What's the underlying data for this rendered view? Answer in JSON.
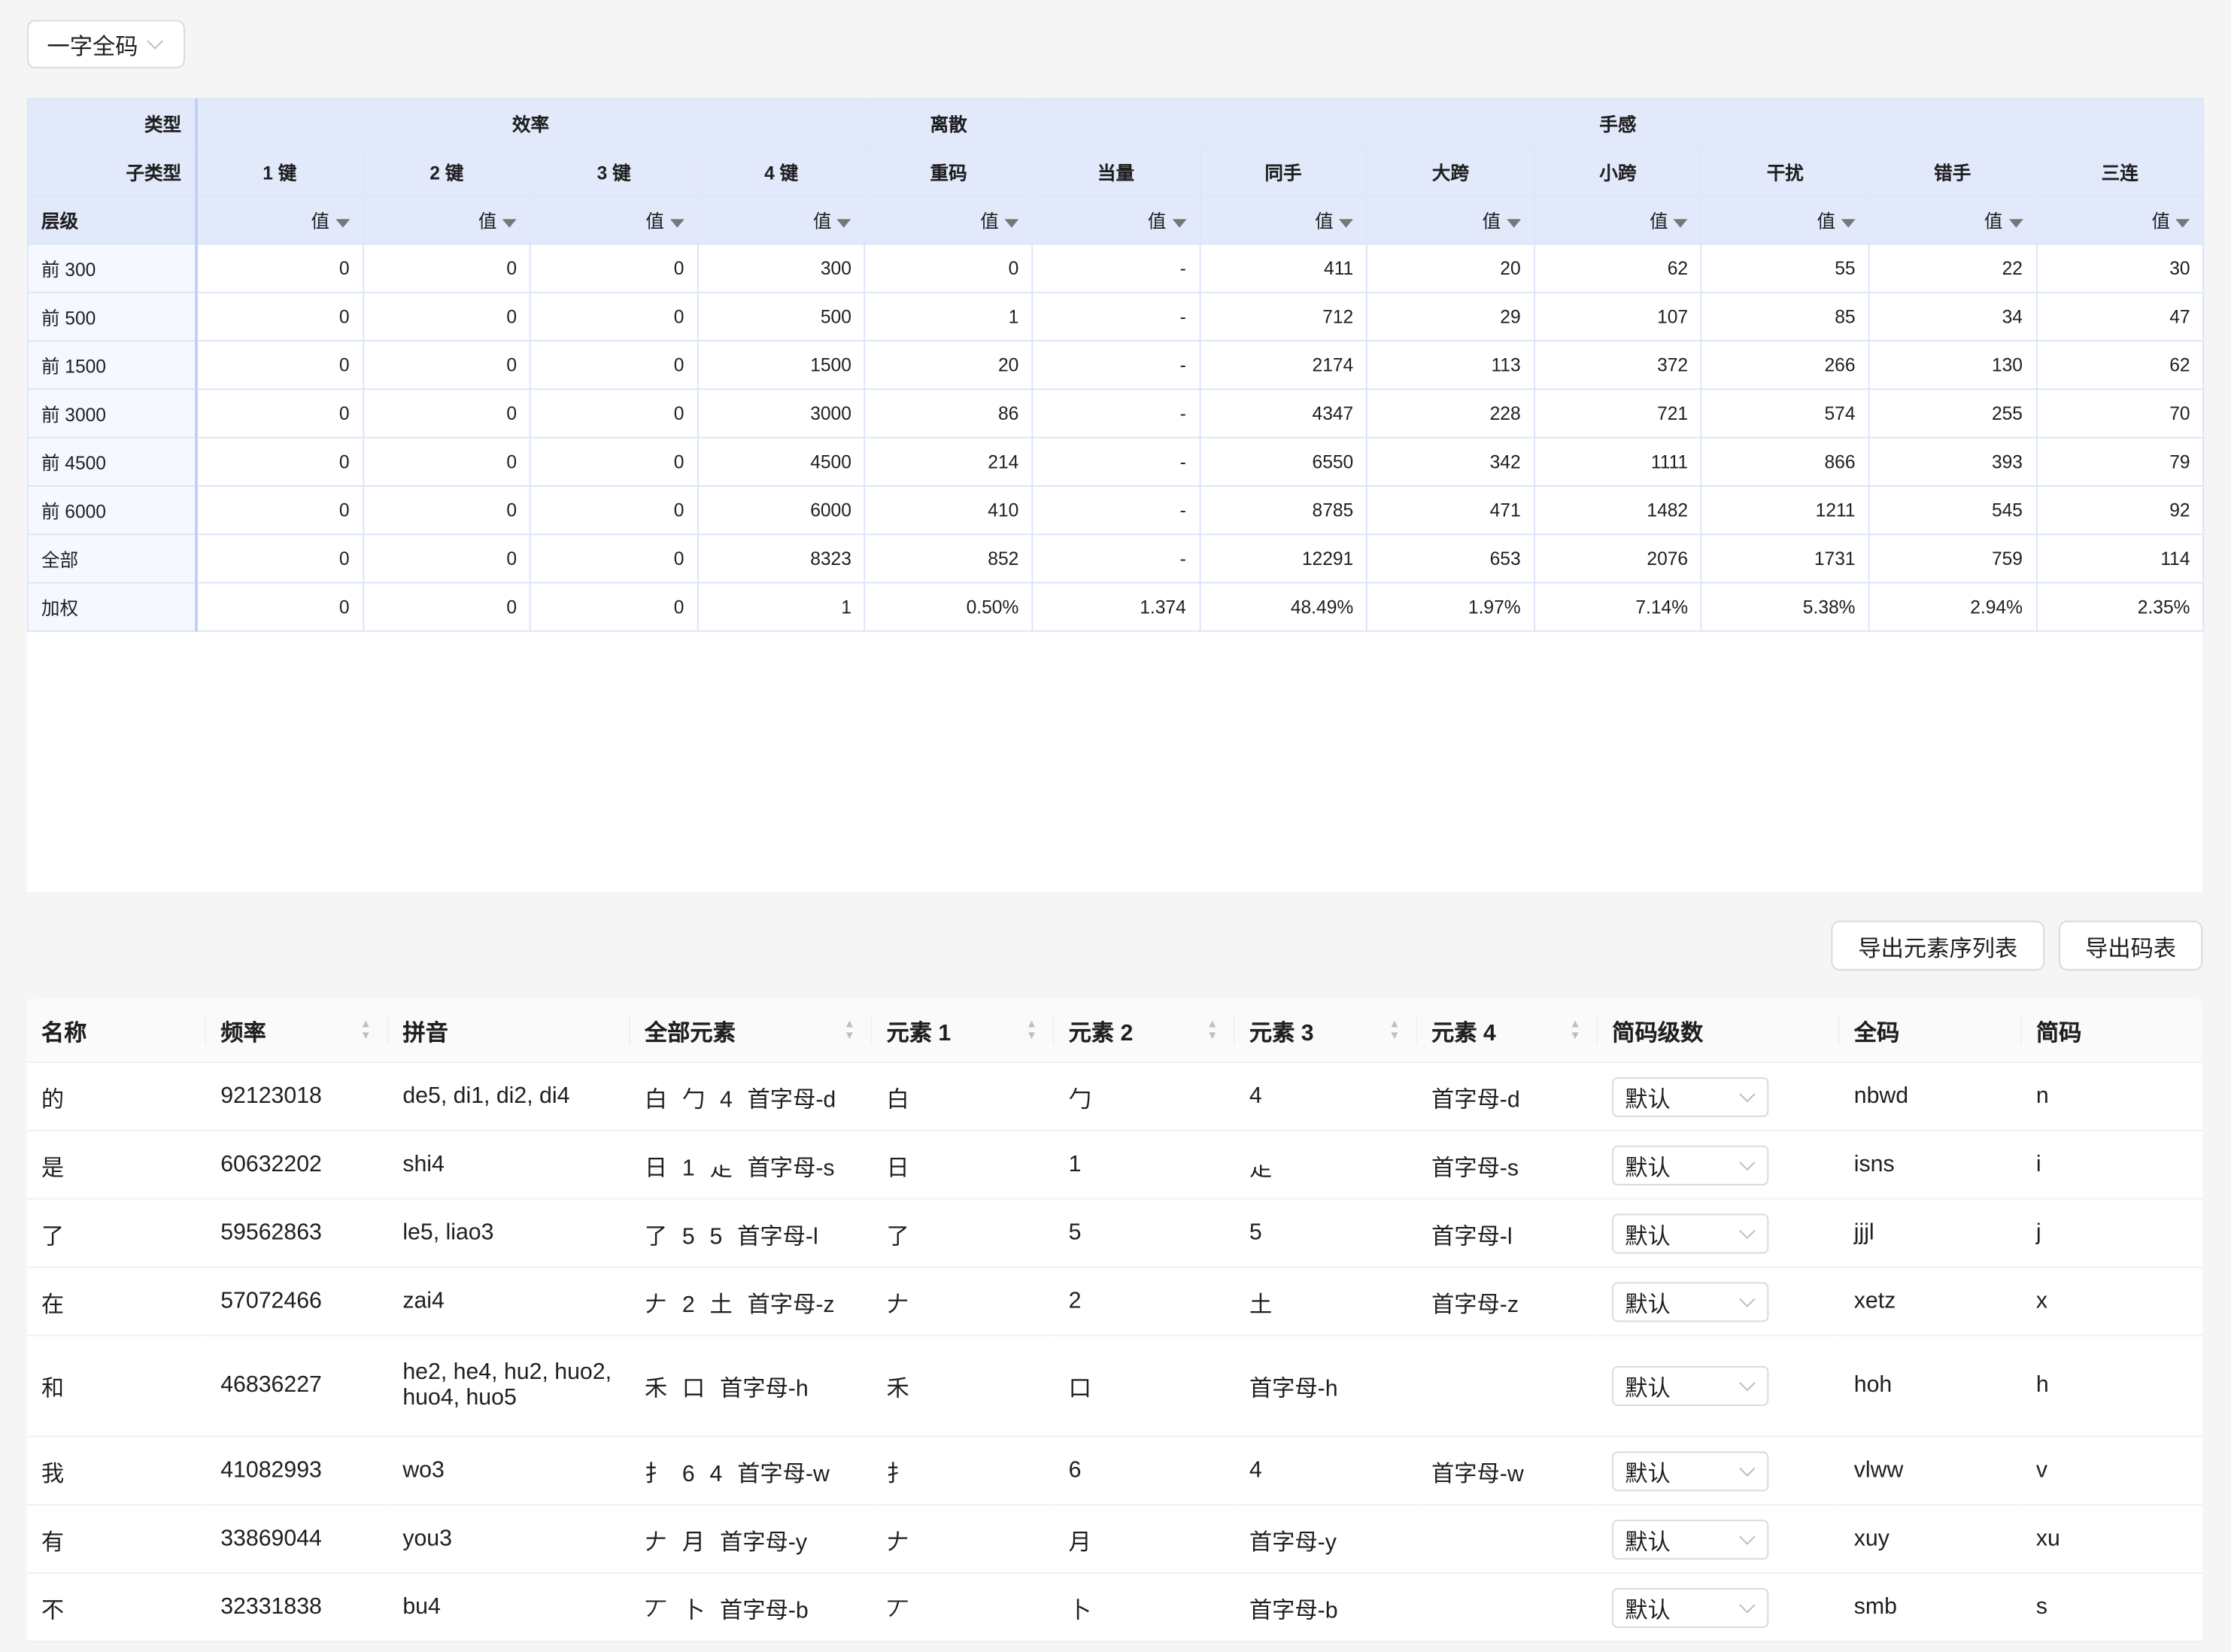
{
  "top_select": {
    "value": "一字全码"
  },
  "pivot": {
    "row_type_label": "类型",
    "row_subtype_label": "子类型",
    "row_level_label": "层级",
    "groups": [
      {
        "label": "效率",
        "span": 4
      },
      {
        "label": "离散",
        "span": 1
      },
      {
        "label": "手感",
        "span": 7
      }
    ],
    "subtypes": [
      "1 键",
      "2 键",
      "3 键",
      "4 键",
      "重码",
      "当量",
      "同手",
      "大跨",
      "小跨",
      "干扰",
      "错手",
      "三连"
    ],
    "value_label": "值",
    "rows": [
      {
        "level": "前 300",
        "values": [
          "0",
          "0",
          "0",
          "300",
          "0",
          "-",
          "411",
          "20",
          "62",
          "55",
          "22",
          "30"
        ]
      },
      {
        "level": "前 500",
        "values": [
          "0",
          "0",
          "0",
          "500",
          "1",
          "-",
          "712",
          "29",
          "107",
          "85",
          "34",
          "47"
        ]
      },
      {
        "level": "前 1500",
        "values": [
          "0",
          "0",
          "0",
          "1500",
          "20",
          "-",
          "2174",
          "113",
          "372",
          "266",
          "130",
          "62"
        ]
      },
      {
        "level": "前 3000",
        "values": [
          "0",
          "0",
          "0",
          "3000",
          "86",
          "-",
          "4347",
          "228",
          "721",
          "574",
          "255",
          "70"
        ]
      },
      {
        "level": "前 4500",
        "values": [
          "0",
          "0",
          "0",
          "4500",
          "214",
          "-",
          "6550",
          "342",
          "1111",
          "866",
          "393",
          "79"
        ]
      },
      {
        "level": "前 6000",
        "values": [
          "0",
          "0",
          "0",
          "6000",
          "410",
          "-",
          "8785",
          "471",
          "1482",
          "1211",
          "545",
          "92"
        ]
      },
      {
        "level": "全部",
        "values": [
          "0",
          "0",
          "0",
          "8323",
          "852",
          "-",
          "12291",
          "653",
          "2076",
          "1731",
          "759",
          "114"
        ]
      },
      {
        "level": "加权",
        "values": [
          "0",
          "0",
          "0",
          "1",
          "0.50%",
          "1.374",
          "48.49%",
          "1.97%",
          "7.14%",
          "5.38%",
          "2.94%",
          "2.35%"
        ]
      }
    ]
  },
  "buttons": {
    "export_elements": "导出元素序列表",
    "export_table": "导出码表"
  },
  "codes": {
    "columns": [
      {
        "label": "名称",
        "sortable": false
      },
      {
        "label": "频率",
        "sortable": true
      },
      {
        "label": "拼音",
        "sortable": false
      },
      {
        "label": "全部元素",
        "sortable": true
      },
      {
        "label": "元素 1",
        "sortable": true
      },
      {
        "label": "元素 2",
        "sortable": true
      },
      {
        "label": "元素 3",
        "sortable": true
      },
      {
        "label": "元素 4",
        "sortable": true
      },
      {
        "label": "简码级数",
        "sortable": false
      },
      {
        "label": "全码",
        "sortable": false
      },
      {
        "label": "简码",
        "sortable": false
      }
    ],
    "rows": [
      {
        "name": "的",
        "freq": "92123018",
        "pinyin": "de5, di1, di2, di4",
        "all": "白 勹 4 首字母-d",
        "e1": "白",
        "e2": "勹",
        "e3": "4",
        "e4": "首字母-d",
        "level": "默认",
        "full": "nbwd",
        "short": "n"
      },
      {
        "name": "是",
        "freq": "60632202",
        "pinyin": "shi4",
        "all": "日 1 龰 首字母-s",
        "e1": "日",
        "e2": "1",
        "e3": "龰",
        "e4": "首字母-s",
        "level": "默认",
        "full": "isns",
        "short": "i"
      },
      {
        "name": "了",
        "freq": "59562863",
        "pinyin": "le5, liao3",
        "all": "了 5 5 首字母-l",
        "e1": "了",
        "e2": "5",
        "e3": "5",
        "e4": "首字母-l",
        "level": "默认",
        "full": "jjjl",
        "short": "j"
      },
      {
        "name": "在",
        "freq": "57072466",
        "pinyin": "zai4",
        "all": "𠂇 2 土 首字母-z",
        "e1": "𠂇",
        "e2": "2",
        "e3": "土",
        "e4": "首字母-z",
        "level": "默认",
        "full": "xetz",
        "short": "x"
      },
      {
        "name": "和",
        "freq": "46836227",
        "pinyin": "he2, he4, hu2, huo2, huo4, huo5",
        "all": "禾 口 首字母-h",
        "e1": "禾",
        "e2": "口",
        "e3": "首字母-h",
        "e4": "",
        "level": "默认",
        "full": "hoh",
        "short": "h"
      },
      {
        "name": "我",
        "freq": "41082993",
        "pinyin": "wo3",
        "all": "扌 6 4 首字母-w",
        "e1": "扌",
        "e2": "6",
        "e3": "4",
        "e4": "首字母-w",
        "level": "默认",
        "full": "vlww",
        "short": "v"
      },
      {
        "name": "有",
        "freq": "33869044",
        "pinyin": "you3",
        "all": "𠂇 月 首字母-y",
        "e1": "𠂇",
        "e2": "月",
        "e3": "首字母-y",
        "e4": "",
        "level": "默认",
        "full": "xuy",
        "short": "xu"
      },
      {
        "name": "不",
        "freq": "32331838",
        "pinyin": "bu4",
        "all": "丆 卜 首字母-b",
        "e1": "丆",
        "e2": "卜",
        "e3": "首字母-b",
        "e4": "",
        "level": "默认",
        "full": "smb",
        "short": "s"
      }
    ]
  }
}
